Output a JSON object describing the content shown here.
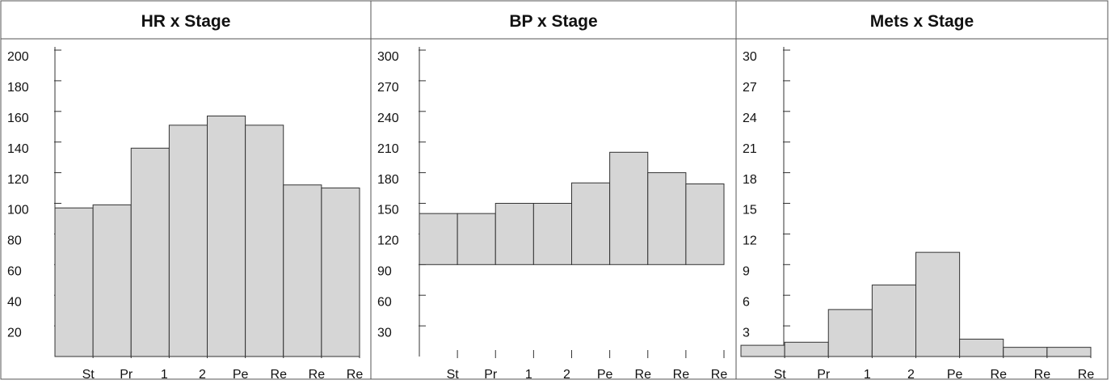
{
  "chart_data": [
    {
      "type": "bar",
      "title": "HR x Stage",
      "categories": [
        "St",
        "Pr",
        "1",
        "2",
        "Pe",
        "Re",
        "Re",
        "Re"
      ],
      "values": [
        97,
        99,
        136,
        151,
        157,
        151,
        112,
        110
      ],
      "color": "#d6d6d6",
      "ylim": [
        0,
        200
      ],
      "yticks": [
        20,
        40,
        60,
        80,
        100,
        120,
        140,
        160,
        180,
        200
      ]
    },
    {
      "type": "bar",
      "title": "BP x Stage",
      "categories": [
        "St",
        "Pr",
        "1",
        "2",
        "Pe",
        "Re",
        "Re",
        "Re"
      ],
      "values": [
        140,
        140,
        150,
        150,
        170,
        200,
        180,
        169
      ],
      "bar_base": 90,
      "color": "#d6d6d6",
      "ylim": [
        0,
        300
      ],
      "yticks": [
        30,
        60,
        90,
        120,
        150,
        180,
        210,
        240,
        270,
        300
      ]
    },
    {
      "type": "bar",
      "title": "Mets x Stage",
      "categories": [
        "St",
        "Pr",
        "1",
        "2",
        "Pe",
        "Re",
        "Re",
        "Re"
      ],
      "values": [
        1.1,
        1.4,
        4.6,
        7.0,
        10.2,
        1.7,
        0.9,
        0.9
      ],
      "color": "#d6d6d6",
      "ylim": [
        0,
        30
      ],
      "yticks": [
        3,
        6,
        9,
        12,
        15,
        18,
        21,
        24,
        27,
        30
      ]
    }
  ]
}
